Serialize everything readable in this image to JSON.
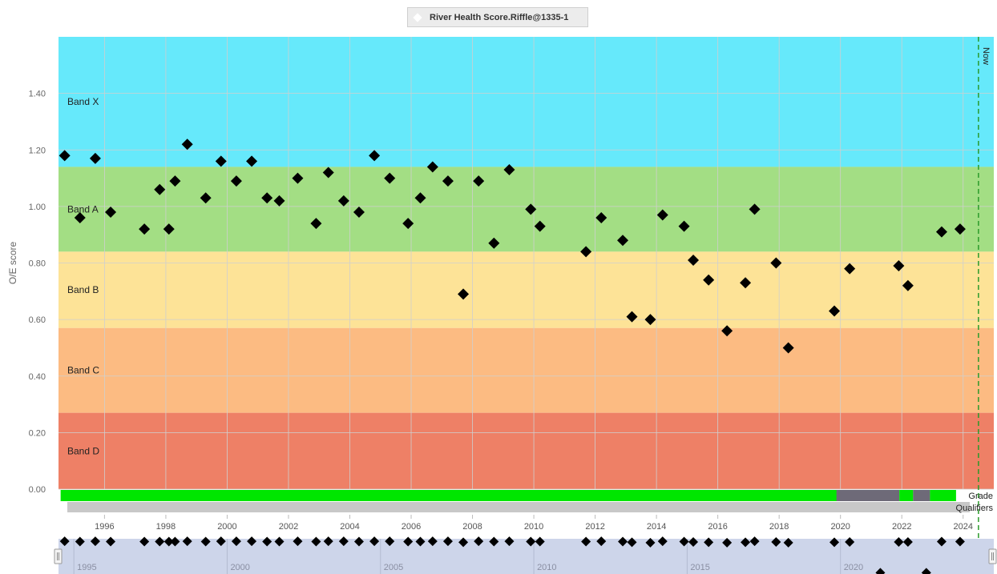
{
  "legend": {
    "label": "River Health Score.Riffle@1335-1",
    "marker_color": "#ffffff"
  },
  "chart_data": {
    "type": "scatter",
    "ylabel": "O/E score",
    "xlabel": "",
    "ylim": [
      0.0,
      1.6
    ],
    "xlim": [
      1994.5,
      2025.0
    ],
    "y_ticks": [
      "0.00",
      "0.20",
      "0.40",
      "0.60",
      "0.80",
      "1.00",
      "1.20",
      "1.40"
    ],
    "x_ticks": [
      "1996",
      "1998",
      "2000",
      "2002",
      "2004",
      "2006",
      "2008",
      "2010",
      "2012",
      "2014",
      "2016",
      "2018",
      "2020",
      "2022",
      "2024"
    ],
    "bands": [
      {
        "name": "Band X",
        "from": 1.14,
        "to": 1.6,
        "color": "#66e9fb"
      },
      {
        "name": "Band A",
        "from": 0.84,
        "to": 1.14,
        "color": "#a3de84"
      },
      {
        "name": "Band B",
        "from": 0.57,
        "to": 0.84,
        "color": "#fde397"
      },
      {
        "name": "Band C",
        "from": 0.27,
        "to": 0.57,
        "color": "#fcbb82"
      },
      {
        "name": "Band D",
        "from": 0.0,
        "to": 0.27,
        "color": "#ee8066"
      }
    ],
    "now": {
      "label": "Now",
      "x": 2024.5,
      "color": "#2a9a2a"
    },
    "grid": true,
    "series": [
      {
        "name": "River Health Score.Riffle@1335-1",
        "color": "#000000",
        "x": [
          1994.7,
          1995.2,
          1995.7,
          1996.2,
          1997.3,
          1997.8,
          1998.1,
          1998.3,
          1998.7,
          1999.3,
          1999.8,
          2000.3,
          2000.8,
          2001.3,
          2001.7,
          2002.3,
          2002.9,
          2003.3,
          2003.8,
          2004.3,
          2004.8,
          2005.3,
          2005.9,
          2006.3,
          2006.7,
          2007.2,
          2007.7,
          2008.2,
          2008.7,
          2009.2,
          2009.9,
          2010.2,
          2011.7,
          2012.2,
          2012.9,
          2013.2,
          2013.8,
          2014.2,
          2014.9,
          2015.2,
          2015.7,
          2016.3,
          2016.9,
          2017.2,
          2017.9,
          2018.3,
          2019.8,
          2020.3,
          2021.9,
          2022.2,
          2023.3,
          2023.9
        ],
        "y": [
          1.18,
          0.96,
          1.17,
          0.98,
          0.92,
          1.06,
          0.92,
          1.09,
          1.22,
          1.03,
          1.16,
          1.09,
          1.16,
          1.03,
          1.02,
          1.1,
          0.94,
          1.12,
          1.02,
          0.98,
          1.18,
          1.1,
          0.94,
          1.03,
          1.14,
          1.09,
          0.69,
          1.09,
          0.87,
          1.13,
          0.99,
          0.93,
          0.84,
          0.96,
          0.88,
          0.61,
          0.6,
          0.97,
          0.93,
          0.81,
          0.74,
          0.56,
          0.73,
          0.99,
          0.8,
          0.5,
          0.63,
          0.78,
          0.79,
          0.72,
          0.91,
          0.92
        ]
      }
    ],
    "grade_row": {
      "label": "Grade",
      "segments": [
        {
          "from": 1994.7,
          "to": 2020.0,
          "color": "#00e600"
        },
        {
          "from": 2020.0,
          "to": 2022.05,
          "color": "#6e6a78"
        },
        {
          "from": 2022.05,
          "to": 2022.5,
          "color": "#00e600"
        },
        {
          "from": 2022.5,
          "to": 2023.05,
          "color": "#6e6a78"
        },
        {
          "from": 2023.05,
          "to": 2023.9,
          "color": "#00e600"
        }
      ]
    },
    "qualifiers_row": {
      "label": "Qualifiers",
      "color": "#c8c8c8"
    }
  },
  "navigator": {
    "xlim": [
      1994.5,
      2025.0
    ],
    "ticks": [
      "1995",
      "2000",
      "2005",
      "2010",
      "2015",
      "2020"
    ],
    "background": "#cdd5ea",
    "y": [
      0.93,
      0.92,
      0.93,
      0.92,
      0.92,
      0.92,
      0.92,
      0.92,
      0.93,
      0.92,
      0.93,
      0.93,
      0.93,
      0.92,
      0.92,
      0.93,
      0.92,
      0.93,
      0.93,
      0.92,
      0.93,
      0.93,
      0.92,
      0.92,
      0.93,
      0.93,
      0.9,
      0.93,
      0.92,
      0.93,
      0.92,
      0.92,
      0.92,
      0.93,
      0.92,
      0.9,
      0.89,
      0.93,
      0.92,
      0.91,
      0.9,
      0.89,
      0.9,
      0.93,
      0.91,
      0.89,
      0.9,
      0.91,
      0.91,
      0.91,
      0.92,
      0.92
    ],
    "extra_points": [
      {
        "x": 2021.3,
        "y": 0.72
      },
      {
        "x": 2022.8,
        "y": 0.72
      }
    ]
  }
}
